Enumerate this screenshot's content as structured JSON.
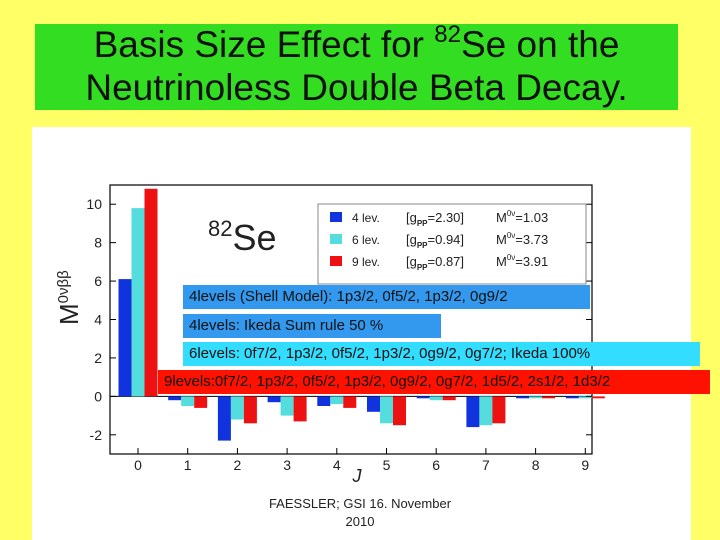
{
  "slide": {
    "title_line1_prefix": "Basis Size Effect for ",
    "title_sup": "82",
    "title_line1_suffix": "Se on the",
    "title_line2": "Neutrinoless Double Beta Decay.",
    "footer_line1": "FAESSLER; GSI 16. November",
    "footer_line2": "2010"
  },
  "colors": {
    "background": "#ffff66",
    "title_box": "#33dd22",
    "series_4lev": "#1133dd",
    "series_6lev": "#55dddd",
    "series_9lev": "#ee1111",
    "note_blue": "#3399ee",
    "note_cyan": "#33ddff",
    "note_red": "#ff1100"
  },
  "notes": {
    "n1": "4levels (Shell Model): 1p3/2, 0f5/2, 1p3/2, 0g9/2",
    "n2": "4levels: Ikeda Sum rule 50 %",
    "n3": "6levels: 0f7/2, 1p3/2, 0f5/2, 1p3/2, 0g9/2, 0g7/2; Ikeda 100%",
    "n4": "9levels:0f7/2, 1p3/2, 0f5/2, 1p3/2, 0g9/2, 0g7/2, 1d5/2, 2s1/2, 1d3/2"
  },
  "chart_data": {
    "type": "bar",
    "nucleus_mass": "82",
    "nucleus_symbol": "Se",
    "xlabel": "J",
    "ylabel": "M",
    "ylabel_sup": "0νββ",
    "categories": [
      "0",
      "1",
      "2",
      "3",
      "4",
      "5",
      "6",
      "7",
      "8",
      "9"
    ],
    "ylim": [
      -3,
      11
    ],
    "yticks": [
      "-2",
      "0",
      "2",
      "4",
      "6",
      "8",
      "10"
    ],
    "ytick_values": [
      -2,
      0,
      2,
      4,
      6,
      8,
      10
    ],
    "series": [
      {
        "name": "4 lev.",
        "gpp": "[g",
        "gpp_sub": "PP",
        "gpp_val": "=2.30]",
        "m_label": "M",
        "m_sup": "0ν",
        "m_val": "=1.03",
        "color": "#1133dd",
        "values": [
          6.1,
          -0.2,
          -2.3,
          -0.3,
          -0.5,
          -0.8,
          -0.1,
          -1.6,
          -0.1,
          -0.1
        ]
      },
      {
        "name": "6 lev.",
        "gpp": "[g",
        "gpp_sub": "PP",
        "gpp_val": "=0.94]",
        "m_label": "M",
        "m_sup": "0ν",
        "m_val": "=3.73",
        "color": "#55dddd",
        "values": [
          9.8,
          -0.5,
          -1.2,
          -1.0,
          -0.4,
          -1.4,
          -0.2,
          -1.5,
          -0.1,
          -0.1
        ]
      },
      {
        "name": "9 lev.",
        "gpp": "[g",
        "gpp_sub": "PP",
        "gpp_val": "=0.87]",
        "m_label": "M",
        "m_sup": "0ν",
        "m_val": "=3.91",
        "color": "#ee1111",
        "values": [
          10.8,
          -0.6,
          -1.4,
          -1.3,
          -0.6,
          -1.5,
          -0.2,
          -1.4,
          -0.1,
          -0.1
        ]
      }
    ]
  }
}
